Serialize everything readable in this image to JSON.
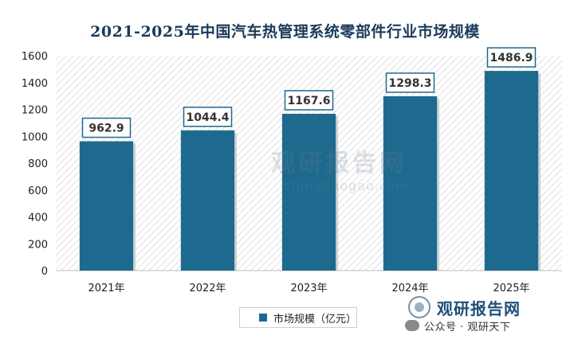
{
  "chart_data": {
    "type": "bar",
    "title": "2021-2025年中国汽车热管理系统零部件行业市场规模",
    "categories": [
      "2021年",
      "2022年",
      "2023年",
      "2024年",
      "2025年"
    ],
    "series": [
      {
        "name": "市场规模（亿元）",
        "values": [
          962.9,
          1044.4,
          1167.6,
          1298.3,
          1486.9
        ]
      }
    ],
    "value_labels": [
      "962.9",
      "1044.4",
      "1167.6",
      "1298.3",
      "1486.9"
    ],
    "ylim": [
      0,
      1600
    ],
    "yticks": [
      0,
      200,
      400,
      600,
      800,
      1000,
      1200,
      1400,
      1600
    ],
    "grid": false,
    "legend_position": "bottom",
    "bar_color": "#1e6a8e",
    "plot_background": "hatched-gray"
  },
  "watermark": {
    "main": "观研报告网",
    "sub": "chinabaogao.com"
  },
  "branding": {
    "name": "观研报告网",
    "footer_text": "公众号 · 观研天下"
  }
}
